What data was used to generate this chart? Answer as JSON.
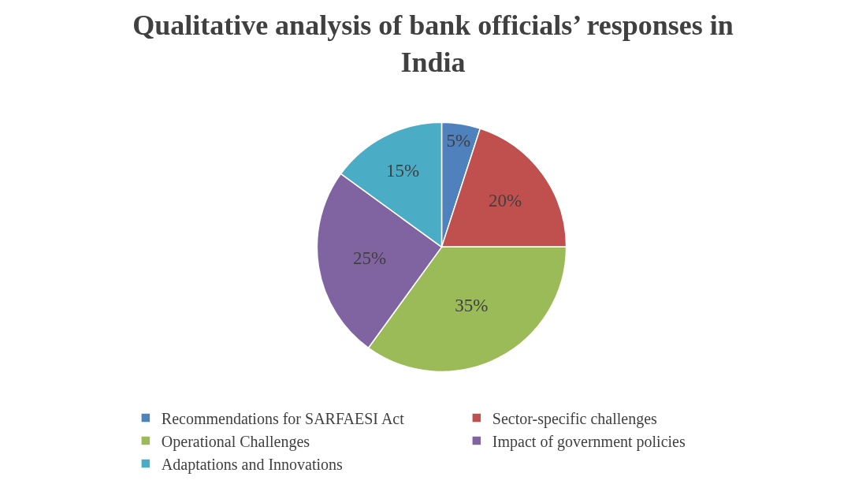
{
  "chart_data": {
    "type": "pie",
    "title": "Qualitative analysis of bank officials’ responses in India",
    "categories": [
      "Recommendations for SARFAESI Act",
      "Sector-specific challenges",
      "Operational Challenges",
      "Impact of government policies",
      "Adaptations and Innovations"
    ],
    "values": [
      5,
      20,
      35,
      25,
      15
    ],
    "colors": [
      "#4f81bd",
      "#c0504d",
      "#9bbb59",
      "#8064a2",
      "#4bacc6"
    ],
    "value_labels": [
      "5%",
      "20%",
      "35%",
      "25%",
      "15%"
    ],
    "legend": "bottom"
  }
}
